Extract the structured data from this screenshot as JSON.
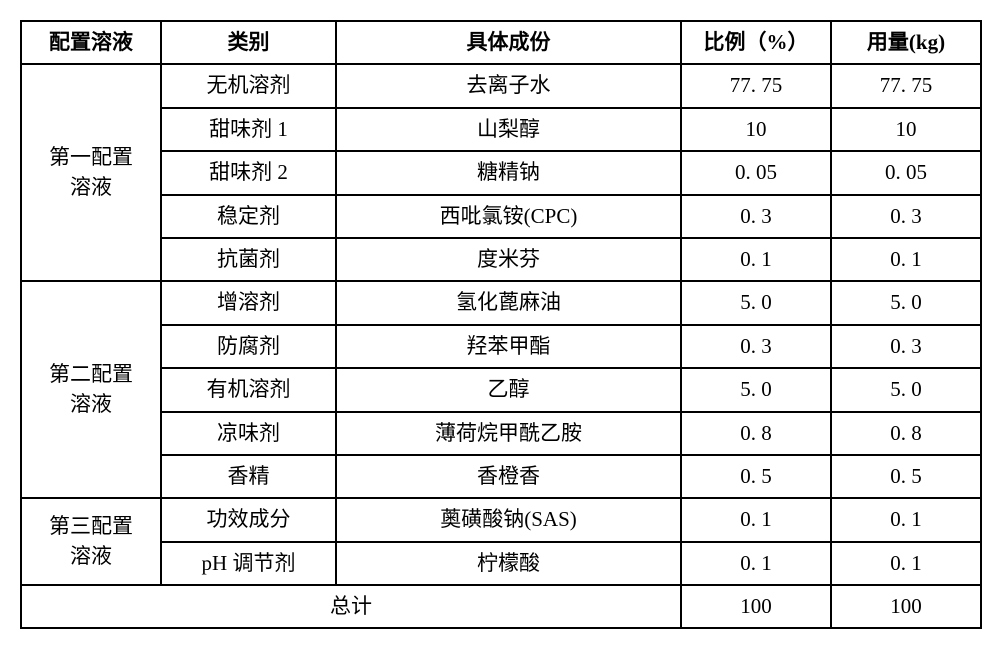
{
  "headers": {
    "solution": "配置溶液",
    "category": "类别",
    "component": "具体成份",
    "ratio": "比例（%）",
    "amount": "用量(kg)"
  },
  "groups": [
    {
      "name": "第一配置\n溶液",
      "rows": [
        {
          "category": "无机溶剂",
          "component": "去离子水",
          "ratio": "77. 75",
          "amount": "77. 75"
        },
        {
          "category": "甜味剂 1",
          "component": "山梨醇",
          "ratio": "10",
          "amount": "10"
        },
        {
          "category": "甜味剂 2",
          "component": "糖精钠",
          "ratio": "0. 05",
          "amount": "0. 05"
        },
        {
          "category": "稳定剂",
          "component": "西吡氯铵(CPC)",
          "ratio": "0. 3",
          "amount": "0. 3"
        },
        {
          "category": "抗菌剂",
          "component": "度米芬",
          "ratio": "0. 1",
          "amount": "0. 1"
        }
      ]
    },
    {
      "name": "第二配置\n溶液",
      "rows": [
        {
          "category": "增溶剂",
          "component": "氢化蓖麻油",
          "ratio": "5. 0",
          "amount": "5. 0"
        },
        {
          "category": "防腐剂",
          "component": "羟苯甲酯",
          "ratio": "0. 3",
          "amount": "0. 3"
        },
        {
          "category": "有机溶剂",
          "component": "乙醇",
          "ratio": "5. 0",
          "amount": "5. 0"
        },
        {
          "category": "凉味剂",
          "component": "薄荷烷甲酰乙胺",
          "ratio": "0. 8",
          "amount": "0. 8"
        },
        {
          "category": "香精",
          "component": "香橙香",
          "ratio": "0. 5",
          "amount": "0. 5"
        }
      ]
    },
    {
      "name": "第三配置\n溶液",
      "rows": [
        {
          "category": "功效成分",
          "component": "薁磺酸钠(SAS)",
          "ratio": "0. 1",
          "amount": "0. 1"
        },
        {
          "category": "pH 调节剂",
          "component": "柠檬酸",
          "ratio": "0. 1",
          "amount": "0. 1"
        }
      ]
    }
  ],
  "total": {
    "label": "总计",
    "ratio": "100",
    "amount": "100"
  }
}
